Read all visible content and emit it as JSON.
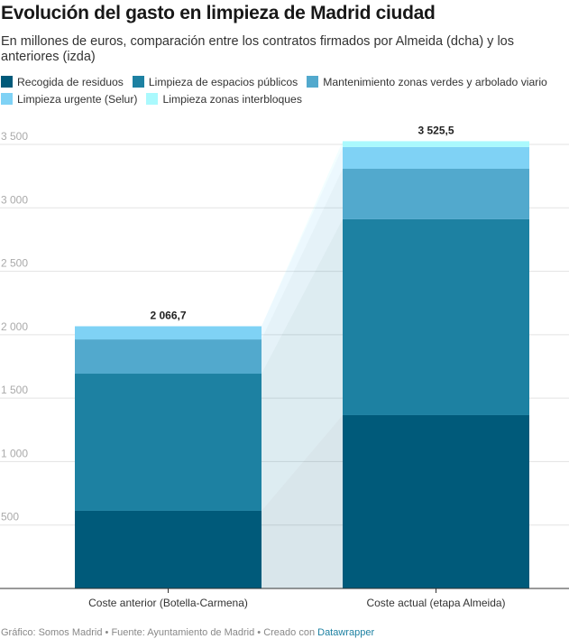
{
  "header": {
    "title": "Evolución del gasto en limpieza de Madrid ciudad",
    "subtitle": "En millones de euros, comparación entre los contratos firmados por Almeida (dcha) y los anteriores (izda)"
  },
  "footer": {
    "prefix": "Gráfico: Somos Madrid • Fuente: Ayuntamiento de Madrid • Creado con ",
    "link": "Datawrapper"
  },
  "chart_data": {
    "type": "bar",
    "stacked": true,
    "title": "Evolución del gasto en limpieza de Madrid ciudad",
    "xlabel": "",
    "ylabel": "Millones de euros",
    "ylim": [
      0,
      3500
    ],
    "yticks": [
      500,
      1000,
      1500,
      2000,
      2500,
      3000,
      3500
    ],
    "ytick_labels": [
      "500",
      "1 000",
      "1 500",
      "2 000",
      "2 500",
      "3 000",
      "3 500"
    ],
    "grid": true,
    "legend_position": "top-left",
    "categories": [
      "Coste anterior (Botella-Carmena)",
      "Coste actual (etapa Almeida)"
    ],
    "totals": [
      2066.7,
      3525.5
    ],
    "total_labels": [
      "2 066,7",
      "3 525,5"
    ],
    "series": [
      {
        "name": "Recogida de residuos",
        "color": "#005a7a",
        "values": [
          612,
          1366
        ]
      },
      {
        "name": "Limpieza de espacios públicos",
        "color": "#1d81a2",
        "values": [
          1081,
          1544
        ]
      },
      {
        "name": "Mantenimiento zonas verdes y arbolado viario",
        "color": "#52a9cd",
        "values": [
          270,
          398
        ]
      },
      {
        "name": "Limpieza urgente (Selur)",
        "color": "#7fd2f5",
        "values": [
          103.7,
          171
        ]
      },
      {
        "name": "Limpieza zonas interbloques",
        "color": "#aaf9fd",
        "values": [
          0,
          46.5
        ]
      }
    ]
  }
}
